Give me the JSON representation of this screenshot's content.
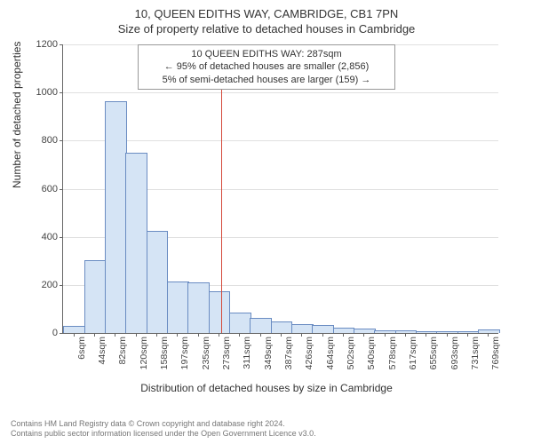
{
  "title_main": "10, QUEEN EDITHS WAY, CAMBRIDGE, CB1 7PN",
  "title_sub": "Size of property relative to detached houses in Cambridge",
  "annotation": {
    "line1": "10 QUEEN EDITHS WAY: 287sqm",
    "line2": "← 95% of detached houses are smaller (2,856)",
    "line3": "5% of semi-detached houses are larger (159) →"
  },
  "chart": {
    "type": "histogram",
    "ylabel": "Number of detached properties",
    "xlabel": "Distribution of detached houses by size in Cambridge",
    "ylim": [
      0,
      1200
    ],
    "ytick_step": 200,
    "yticks": [
      0,
      200,
      400,
      600,
      800,
      1000,
      1200
    ],
    "x_numeric_min": 0,
    "x_numeric_max": 788,
    "xticks": [
      "6sqm",
      "44sqm",
      "82sqm",
      "120sqm",
      "158sqm",
      "197sqm",
      "235sqm",
      "273sqm",
      "311sqm",
      "349sqm",
      "387sqm",
      "426sqm",
      "464sqm",
      "502sqm",
      "540sqm",
      "578sqm",
      "617sqm",
      "655sqm",
      "693sqm",
      "731sqm",
      "769sqm"
    ],
    "bars": [
      25,
      300,
      960,
      745,
      420,
      210,
      205,
      170,
      80,
      60,
      45,
      35,
      30,
      18,
      15,
      8,
      6,
      4,
      4,
      3,
      12
    ],
    "bar_fill": "#d5e4f5",
    "bar_stroke": "#6a8cc2",
    "grid_color": "#e0e0e0",
    "background_color": "#ffffff",
    "vline_x": 287,
    "vline_color": "#d44a3a",
    "title_fontsize": 13,
    "label_fontsize": 12,
    "tick_fontsize": 11
  },
  "footer": {
    "line1": "Contains HM Land Registry data © Crown copyright and database right 2024.",
    "line2": "Contains public sector information licensed under the Open Government Licence v3.0."
  }
}
